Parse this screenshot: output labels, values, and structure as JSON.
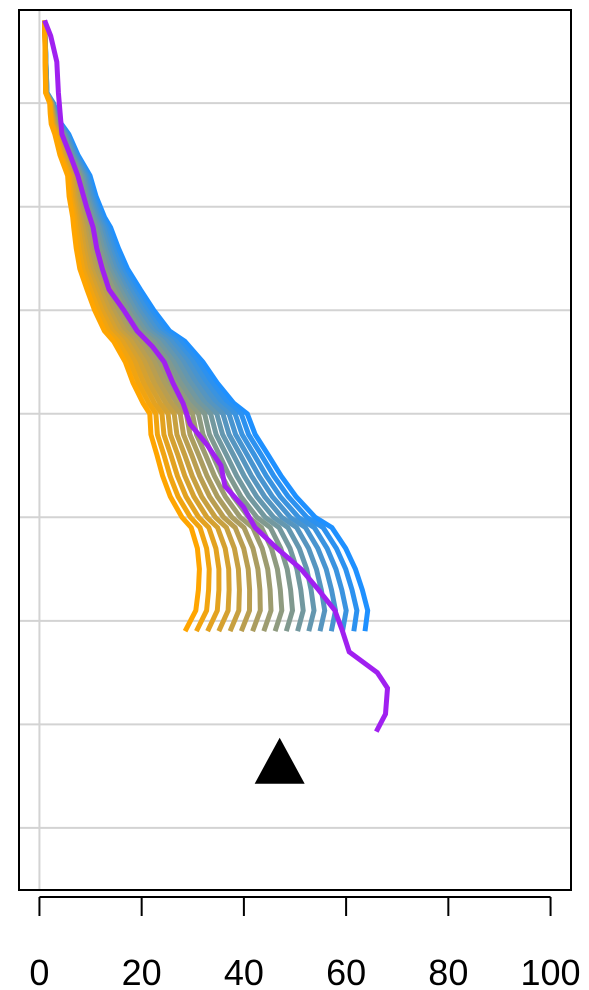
{
  "chart_data": {
    "type": "line",
    "title": "",
    "xlabel": "",
    "ylabel": "",
    "xlim": [
      -4,
      104
    ],
    "ylim": [
      0,
      8.5
    ],
    "x_ticks": [
      0,
      20,
      40,
      60,
      80,
      100
    ],
    "x_tick_labels": [
      "0",
      "20",
      "40",
      "60",
      "80",
      "100"
    ],
    "y_gridlines": [
      0.9,
      1.9,
      2.9,
      3.9,
      4.9,
      5.9,
      6.9,
      7.9
    ],
    "vertical_gridline_x": 0,
    "grid": true,
    "legend": "none",
    "colors": {
      "start": "#FFA500",
      "end": "#1E90FF",
      "highlight": "#A020F0",
      "grid": "#d3d3d3"
    },
    "depth_levels": [
      0.1,
      0.8,
      0.9,
      1.0,
      1.1,
      1.2,
      1.4,
      1.6,
      1.8,
      2.0,
      2.1,
      2.3,
      2.5,
      2.7,
      2.9,
      3.1,
      3.2,
      3.4,
      3.6,
      3.8,
      3.9,
      4.1,
      4.3,
      4.5,
      4.7,
      4.9,
      5.0,
      5.2,
      5.4,
      5.6,
      5.8,
      6.0
    ],
    "base_series": [
      1,
      1.2,
      2,
      2.1,
      2.3,
      3,
      4,
      5.5,
      5.8,
      6.5,
      6.7,
      7.2,
      7.9,
      9.3,
      10.8,
      12.7,
      14.5,
      16.8,
      18.3,
      20.3,
      21.6,
      21.8,
      23,
      24.1,
      25.6,
      27.9,
      29.7,
      30.9,
      31.3,
      31.1,
      30.6,
      28.5
    ],
    "fan_series_count": 17,
    "fan_offset_step": 2.2,
    "highlight_series": {
      "x": [
        1,
        2.2,
        3.4,
        3.7,
        4.4,
        6,
        7.5,
        9.2,
        10.5,
        11.2,
        12.3,
        13.6,
        16.5,
        19.1,
        22.1,
        24.4,
        26.1,
        28.1,
        29.5,
        32.8,
        35.5,
        36.3,
        39.9,
        42.2,
        46.5,
        51.2,
        54.6,
        57.8,
        59.3,
        60.6,
        66.1,
        68.1,
        67.7,
        65.9
      ],
      "y": [
        0.1,
        0.25,
        0.5,
        0.8,
        1.2,
        1.4,
        1.6,
        1.9,
        2.1,
        2.3,
        2.5,
        2.7,
        2.9,
        3.1,
        3.25,
        3.4,
        3.6,
        3.8,
        4.0,
        4.2,
        4.4,
        4.6,
        4.8,
        5.0,
        5.2,
        5.4,
        5.6,
        5.8,
        6.0,
        6.2,
        6.4,
        6.55,
        6.8,
        6.97
      ]
    },
    "marker": {
      "shape": "triangle",
      "x": 47,
      "y": 7.28,
      "color": "#000000"
    }
  }
}
